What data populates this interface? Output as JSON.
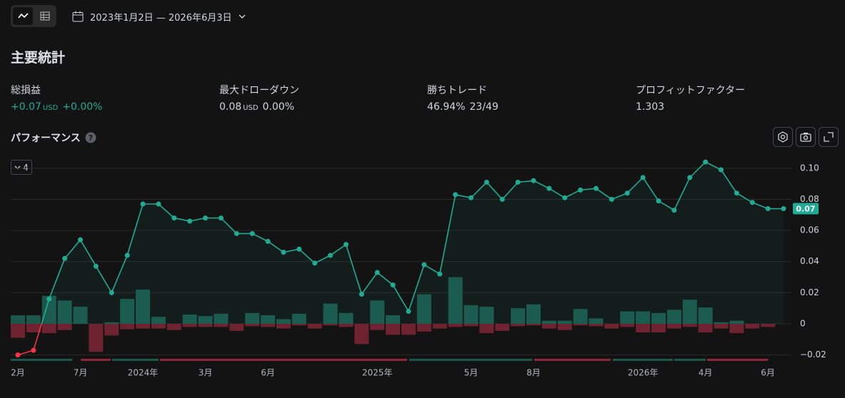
{
  "toolbar": {
    "date_range": "2023年1月2日 — 2026年6月3日"
  },
  "stats": {
    "title": "主要統計",
    "items": [
      {
        "label": "総損益",
        "value": "+0.07",
        "unit": "USD",
        "extra": "+0.00%"
      },
      {
        "label": "最大ドローダウン",
        "value": "0.08",
        "unit": "USD",
        "extra": "0.00%"
      },
      {
        "label": "勝ちトレード",
        "value": "46.94%",
        "extra": "23/49"
      },
      {
        "label": "プロフィットファクター",
        "value": "1.303"
      }
    ]
  },
  "performance": {
    "title": "パフォーマンス",
    "select": "4"
  },
  "chart_data": {
    "type": "line",
    "categories": [
      "2月",
      null,
      null,
      null,
      "7月",
      null,
      null,
      null,
      "2024年",
      null,
      null,
      null,
      "3月",
      null,
      null,
      null,
      "6月",
      null,
      null,
      null,
      null,
      null,
      null,
      "2025年",
      null,
      null,
      null,
      null,
      null,
      "5月",
      null,
      null,
      null,
      "8月",
      null,
      null,
      null,
      null,
      null,
      null,
      "2026年",
      null,
      null,
      null,
      "4月",
      null,
      null,
      null,
      "6月",
      null
    ],
    "values": [
      -0.02,
      -0.017,
      0.016,
      0.042,
      0.054,
      0.037,
      0.02,
      0.044,
      0.077,
      0.077,
      0.068,
      0.066,
      0.068,
      0.068,
      0.058,
      0.058,
      0.053,
      0.046,
      0.048,
      0.039,
      0.044,
      0.051,
      0.019,
      0.033,
      0.025,
      0.008,
      0.038,
      0.032,
      0.083,
      0.081,
      0.091,
      0.08,
      0.091,
      0.092,
      0.087,
      0.081,
      0.086,
      0.087,
      0.08,
      0.084,
      0.094,
      0.079,
      0.073,
      0.094,
      0.104,
      0.099,
      0.084,
      0.078,
      0.074,
      0.074
    ],
    "color": "#22ab94",
    "negative_color": "#f23645",
    "last_value_label": "0.07",
    "bar_series": [
      {
        "color": "#1c574c",
        "values": [
          0.0055,
          0.0055,
          0.018,
          0.015,
          0.011,
          0,
          0.001,
          0.016,
          0.022,
          0.0045,
          0,
          0.006,
          0.005,
          0.0065,
          0,
          0.007,
          0.0055,
          0.003,
          0.0065,
          0,
          0.013,
          0.007,
          0,
          0.015,
          0.0055,
          0,
          0.019,
          0,
          0.03,
          0.012,
          0.011,
          0,
          0.01,
          0.0125,
          0.002,
          0.002,
          0.0095,
          0.0035,
          0,
          0.008,
          0.008,
          0.007,
          0.009,
          0.0155,
          0.0105,
          0.001,
          0.002,
          0,
          0,
          null
        ]
      },
      {
        "color": "#6f2330",
        "values": [
          -0.009,
          -0.0055,
          -0.006,
          -0.004,
          0,
          -0.018,
          -0.0075,
          -0.0035,
          -0.003,
          -0.003,
          -0.004,
          -0.002,
          -0.002,
          -0.002,
          -0.0045,
          -0.0015,
          -0.002,
          -0.003,
          -0.001,
          -0.003,
          -0.001,
          -0.002,
          -0.013,
          -0.004,
          -0.007,
          -0.007,
          -0.005,
          -0.003,
          -0.002,
          -0.0015,
          -0.006,
          -0.0045,
          -0.0015,
          -0.001,
          -0.003,
          -0.004,
          -0.001,
          -0.0015,
          -0.003,
          -0.002,
          -0.0055,
          -0.0055,
          -0.003,
          -0.002,
          -0.0055,
          -0.003,
          -0.006,
          -0.003,
          -0.002,
          null
        ]
      }
    ],
    "ylim": [
      -0.022,
      0.11
    ],
    "yticks": [
      {
        "value": -0.02,
        "label": "−0.02"
      },
      0,
      0.02,
      0.04,
      0.06,
      0.08,
      {
        "value": 0.1,
        "label": "0.10"
      }
    ],
    "grid": true
  }
}
